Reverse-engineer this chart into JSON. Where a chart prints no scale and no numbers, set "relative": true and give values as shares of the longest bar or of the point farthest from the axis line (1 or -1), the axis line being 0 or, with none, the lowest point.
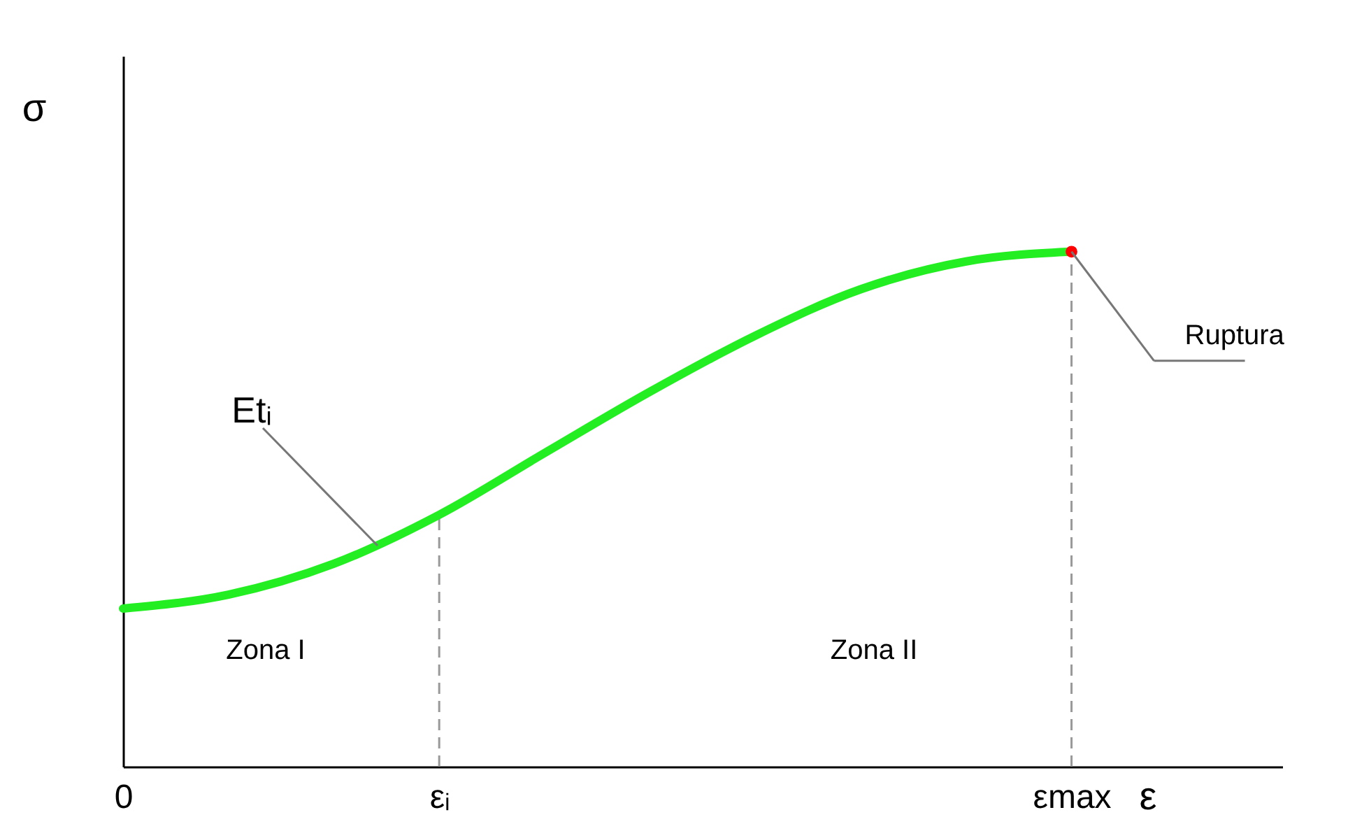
{
  "chart_data": {
    "type": "line",
    "relative": true,
    "xlabel": "ε",
    "ylabel": "σ",
    "categories": [
      "0",
      null,
      null,
      "εᵢ",
      null,
      null,
      null,
      null,
      null,
      "εmax",
      null,
      null
    ],
    "series": [
      {
        "color": "#22ee22",
        "values": [
          0.307,
          0.334,
          0.394,
          0.489,
          0.609,
          0.728,
          0.837,
          0.927,
          0.981,
          1,
          null,
          null
        ]
      },
      {
        "type": "scatter",
        "color": "#ff0000",
        "values": [
          null,
          null,
          null,
          null,
          null,
          null,
          null,
          null,
          null,
          1,
          null,
          null
        ]
      }
    ],
    "ref_lines": [
      {
        "axis": "x",
        "value": "εᵢ",
        "line_style": "dashed",
        "color": "#999999"
      },
      {
        "axis": "x",
        "value": "εmax",
        "line_style": "dashed",
        "color": "#999999"
      }
    ],
    "annotations": [
      "Zona I",
      "Zona II",
      "Etᵢ",
      {
        "text": "Ruptura",
        "x": "εmax",
        "y": 1
      }
    ],
    "grid": false,
    "line_style": "solid"
  }
}
